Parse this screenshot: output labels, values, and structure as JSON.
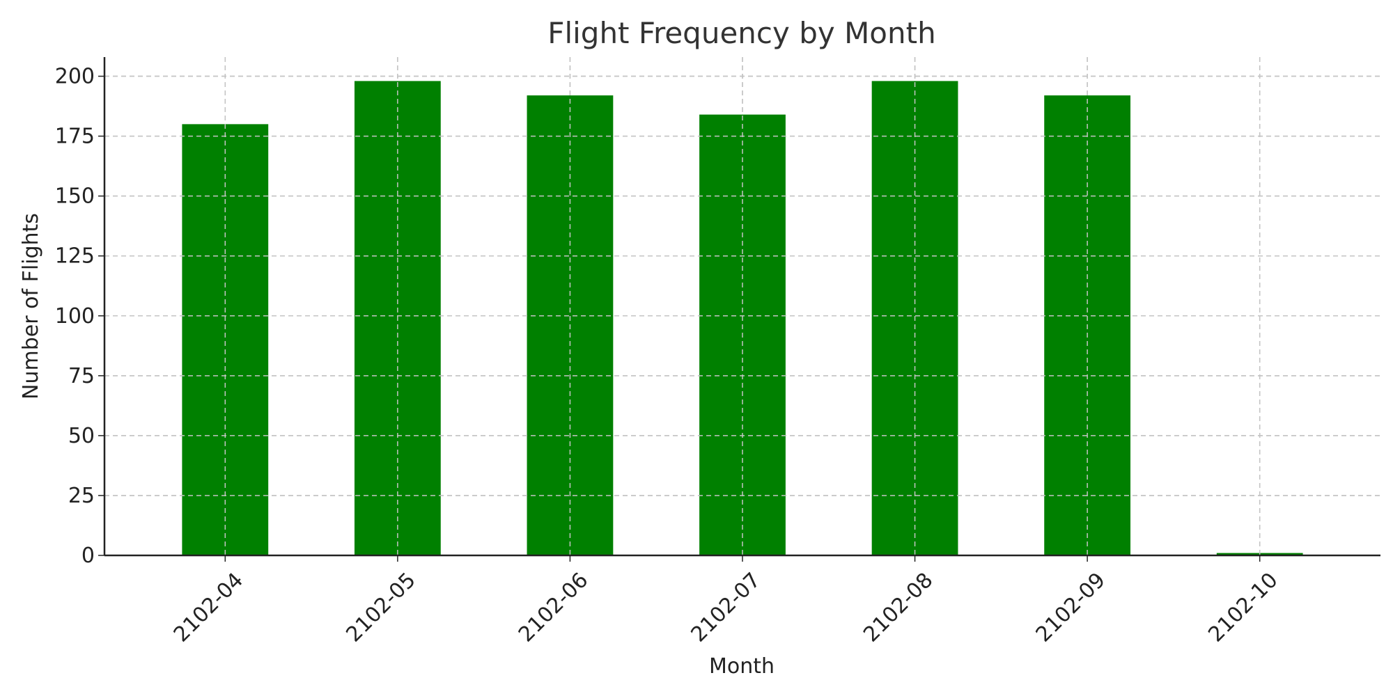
{
  "chart_data": {
    "type": "bar",
    "title": "Flight Frequency by Month",
    "xlabel": "Month",
    "ylabel": "Number of Flights",
    "categories": [
      "2102-04",
      "2102-05",
      "2102-06",
      "2102-07",
      "2102-08",
      "2102-09",
      "2102-10"
    ],
    "values": [
      180,
      198,
      192,
      184,
      198,
      192,
      1
    ],
    "ylim": [
      0,
      208
    ],
    "yticks": [
      0,
      25,
      50,
      75,
      100,
      125,
      150,
      175,
      200
    ],
    "ytick_labels": [
      "0",
      "25",
      "50",
      "75",
      "100",
      "125",
      "150",
      "175",
      "200"
    ],
    "grid": true,
    "bar_color": "#008000"
  }
}
